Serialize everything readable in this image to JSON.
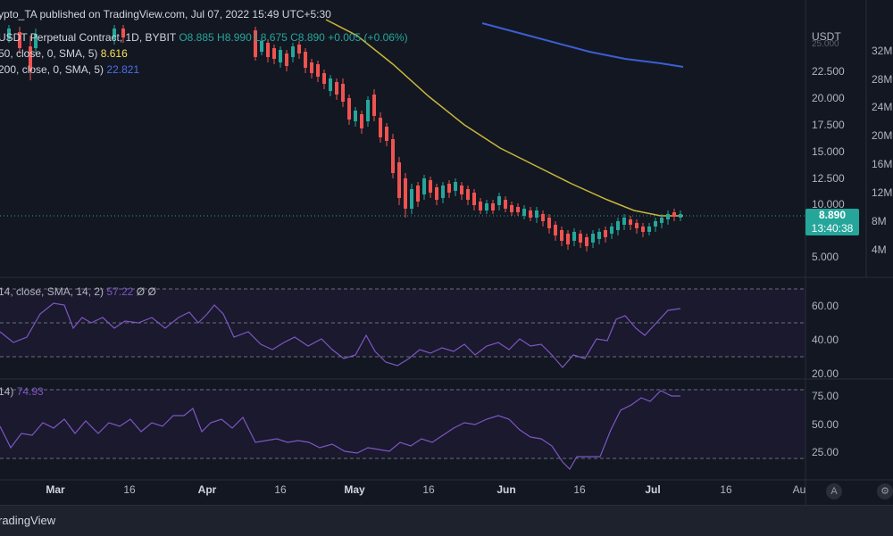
{
  "publish_line": "ypto_TA published on TradingView.com, Jul 07, 2022 15:49 UTC+5:30",
  "legend": {
    "symbol": "USDT Perpetual Contract, 1D, BYBIT",
    "open": "O8.885",
    "high": "H8.990",
    "low": "L8.675",
    "close": "C8.890",
    "change": "+0.005 (+0.06%)",
    "ma50_label": "50, close, 0, SMA, 5)",
    "ma50_value": "8.616",
    "ma200_label": "200, close, 0, SMA, 5)",
    "ma200_value": "22.821"
  },
  "price_axis": {
    "currency": "USDT",
    "ticks": [
      "25.000",
      "22.500",
      "20.000",
      "17.500",
      "15.000",
      "12.500",
      "10.000",
      "5.000"
    ],
    "last_price": "8.890",
    "countdown": "13:40:38"
  },
  "volume_axis": {
    "ticks": [
      "32M",
      "28M",
      "24M",
      "20M",
      "16M",
      "12M",
      "8M",
      "4M"
    ]
  },
  "stoch_pane": {
    "label": "14, close, SMA, 14, 2)",
    "value": "57.22",
    "extra": "Ø Ø",
    "ticks": [
      "60.00",
      "40.00",
      "20.00"
    ]
  },
  "rsi_pane": {
    "label": "14)",
    "value": "74.93",
    "ticks": [
      "75.00",
      "50.00",
      "25.00"
    ]
  },
  "date_axis": [
    {
      "label": "Mar",
      "bold": true
    },
    {
      "label": "16",
      "bold": false
    },
    {
      "label": "Apr",
      "bold": true
    },
    {
      "label": "16",
      "bold": false
    },
    {
      "label": "May",
      "bold": true
    },
    {
      "label": "16",
      "bold": false
    },
    {
      "label": "Jun",
      "bold": true
    },
    {
      "label": "16",
      "bold": false
    },
    {
      "label": "Jul",
      "bold": true
    },
    {
      "label": "16",
      "bold": false
    },
    {
      "label": "Au",
      "bold": false
    }
  ],
  "axis_buttons": {
    "auto": "A",
    "settings": "⚙"
  },
  "footer": {
    "brand": "radingView"
  },
  "colors": {
    "background": "#131722",
    "up": "#26a69a",
    "down": "#ef5350",
    "ma50": "#c9b63a",
    "ma200": "#3b5fd0",
    "oscillator": "#7e57c2"
  }
}
